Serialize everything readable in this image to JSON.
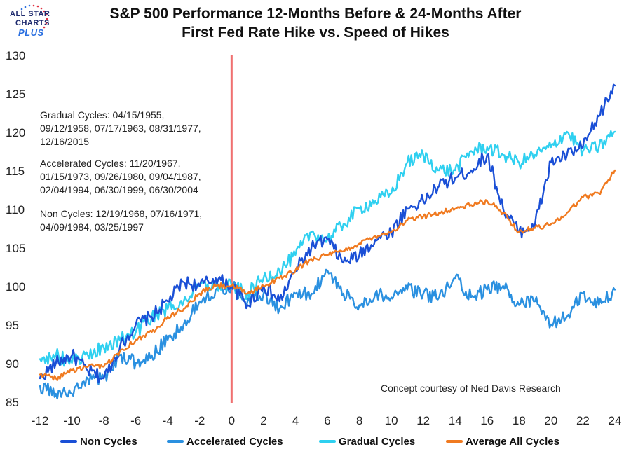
{
  "logo": {
    "line1": "ALL STAR",
    "line2": "CHARTS",
    "line3": "PLUS"
  },
  "title_line1": "S&P 500 Performance 12-Months Before & 24-Months After",
  "title_line2": "First Fed Rate Hike vs. Speed of Hikes",
  "notes": {
    "gradual": [
      "Gradual Cycles: 04/15/1955,",
      "09/12/1958, 07/17/1963, 08/31/1977,",
      "12/16/2015"
    ],
    "accelerated": [
      "Accelerated Cycles: 11/20/1967,",
      "01/15/1973, 09/26/1980, 09/04/1987,",
      "02/04/1994, 06/30/1999, 06/30/2004"
    ],
    "non": [
      "Non Cycles: 12/19/1968, 07/16/1971,",
      "04/09/1984, 03/25/1997"
    ]
  },
  "credit": "Concept courtesy of Ned Davis Research",
  "colors": {
    "non": "#1a4fd6",
    "accelerated": "#2a90e0",
    "gradual": "#2fd0f0",
    "average": "#f07a20",
    "marker": "#f07070"
  },
  "chart_data": {
    "type": "line",
    "title": "S&P 500 Performance 12-Months Before & 24-Months After First Fed Rate Hike vs. Speed of Hikes",
    "xlabel": "",
    "ylabel": "",
    "xlim": [
      -12,
      24
    ],
    "ylim": [
      85,
      130
    ],
    "x_ticks": [
      -12,
      -10,
      -8,
      -6,
      -4,
      -2,
      0,
      2,
      4,
      6,
      8,
      10,
      12,
      14,
      16,
      18,
      20,
      22,
      24
    ],
    "y_ticks": [
      85,
      90,
      95,
      100,
      105,
      110,
      115,
      120,
      125,
      130
    ],
    "vertical_marker_x": 0,
    "legend_position": "bottom",
    "series": [
      {
        "name": "Non Cycles",
        "color_key": "non",
        "x": [
          -12,
          -11,
          -10,
          -9,
          -8,
          -7,
          -6,
          -5,
          -4,
          -3,
          -2,
          -1,
          0,
          1,
          2,
          3,
          4,
          5,
          6,
          7,
          8,
          9,
          10,
          11,
          12,
          13,
          14,
          15,
          16,
          17,
          18,
          19,
          20,
          21,
          22,
          23,
          24
        ],
        "y": [
          88,
          90,
          91,
          89,
          88,
          92,
          95,
          96,
          98,
          100.5,
          100,
          101,
          100,
          97.5,
          100,
          98,
          102,
          105,
          106,
          103,
          104,
          106,
          107,
          110,
          111,
          113,
          114,
          115,
          117,
          110,
          107,
          108,
          116,
          117,
          118,
          122,
          126
        ]
      },
      {
        "name": "Accelerated Cycles",
        "color_key": "accelerated",
        "x": [
          -12,
          -11,
          -10,
          -9,
          -8,
          -7,
          -6,
          -5,
          -4,
          -3,
          -2,
          -1,
          0,
          1,
          2,
          3,
          4,
          5,
          6,
          7,
          8,
          9,
          10,
          11,
          12,
          13,
          14,
          15,
          16,
          17,
          18,
          19,
          20,
          21,
          22,
          23,
          24
        ],
        "y": [
          87,
          86,
          86,
          88,
          88,
          91,
          90,
          91,
          93,
          95,
          98,
          99.5,
          100,
          98,
          99,
          97,
          99,
          99,
          102,
          99,
          97.5,
          99,
          98.5,
          99.5,
          99,
          98.5,
          101,
          98.5,
          99.5,
          100,
          97.5,
          98,
          95,
          96,
          99,
          97.5,
          99.5
        ]
      },
      {
        "name": "Gradual Cycles",
        "color_key": "gradual",
        "x": [
          -12,
          -11,
          -10,
          -9,
          -8,
          -7,
          -6,
          -5,
          -4,
          -3,
          -2,
          -1,
          0,
          1,
          2,
          3,
          4,
          5,
          6,
          7,
          8,
          9,
          10,
          11,
          12,
          13,
          14,
          15,
          16,
          17,
          18,
          19,
          20,
          21,
          22,
          23,
          24
        ],
        "y": [
          90.5,
          91,
          90,
          91,
          92,
          93,
          94,
          96,
          97,
          98,
          100,
          100,
          100,
          99,
          101,
          102,
          104,
          107,
          106,
          108,
          110,
          111,
          112,
          116,
          117,
          115,
          115,
          117.5,
          118,
          117,
          116,
          117,
          118,
          120,
          117.5,
          118,
          120
        ]
      },
      {
        "name": "Average All Cycles",
        "color_key": "average",
        "x": [
          -12,
          -11,
          -10,
          -9,
          -8,
          -7,
          -6,
          -5,
          -4,
          -3,
          -2,
          -1,
          0,
          1,
          2,
          3,
          4,
          5,
          6,
          7,
          8,
          9,
          10,
          11,
          12,
          13,
          14,
          15,
          16,
          17,
          18,
          19,
          20,
          21,
          22,
          23,
          24
        ],
        "y": [
          88.5,
          88,
          89,
          89.5,
          89.5,
          91.5,
          93,
          94,
          96,
          97,
          99,
          100,
          100,
          99,
          100,
          101,
          102,
          103.5,
          104,
          104.5,
          105.5,
          106.5,
          107,
          108.5,
          109,
          109.5,
          110,
          110.5,
          111,
          109.5,
          107,
          107.5,
          108,
          109.5,
          111.5,
          112,
          115
        ]
      }
    ]
  }
}
